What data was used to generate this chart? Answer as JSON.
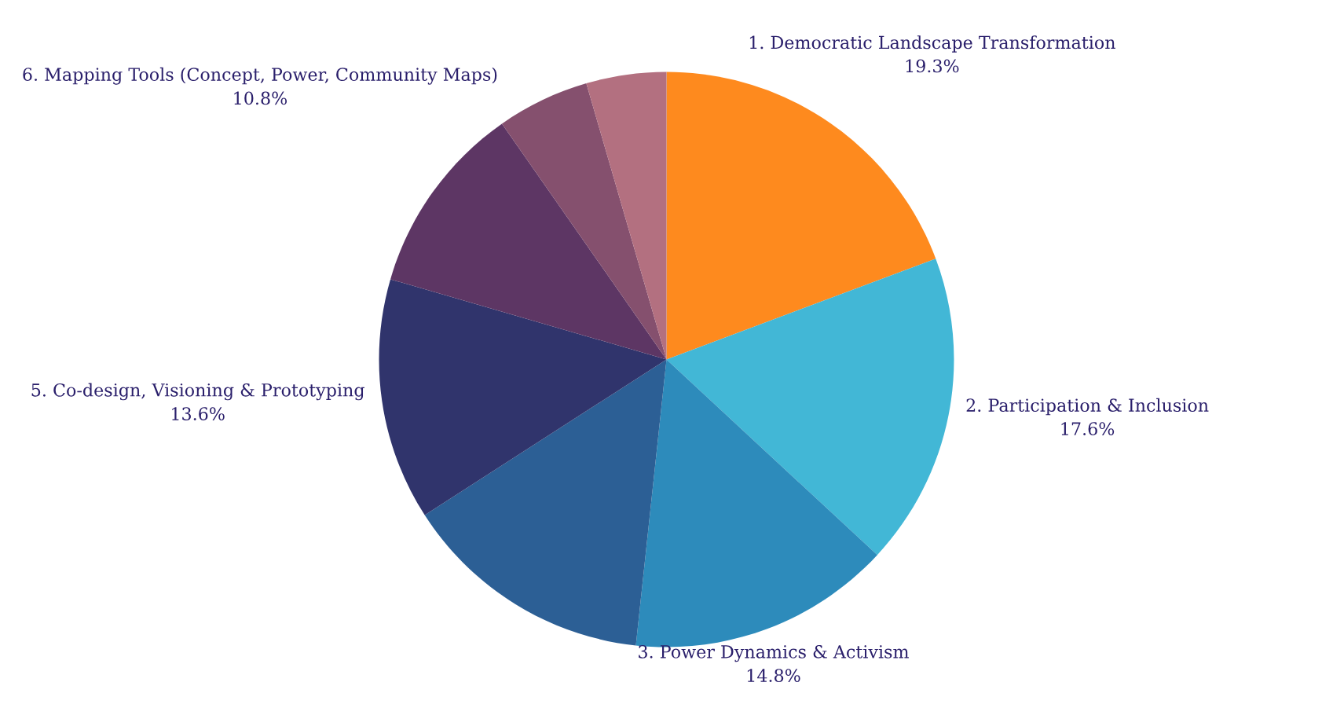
{
  "chart_data": {
    "type": "pie",
    "categories": [
      "1. Democratic Landscape Transformation",
      "2. Participation & Inclusion",
      "3. Power Dynamics & Activism",
      null,
      "5. Co-design, Visioning & Prototyping",
      "6. Mapping Tools (Concept, Power, Community Maps)",
      null,
      null
    ],
    "values": [
      19.3,
      17.6,
      14.8,
      14.2,
      13.6,
      10.8,
      5.2,
      4.5
    ],
    "value_labels": [
      "19.3%",
      "17.6%",
      "14.8%",
      null,
      "13.6%",
      "10.8%",
      null,
      null
    ],
    "colors": [
      "#fe8a1e",
      "#42b7d6",
      "#2d8bbb",
      "#2c5f95",
      "#30346c",
      "#5d3664",
      "#85506e",
      "#b37080"
    ]
  }
}
